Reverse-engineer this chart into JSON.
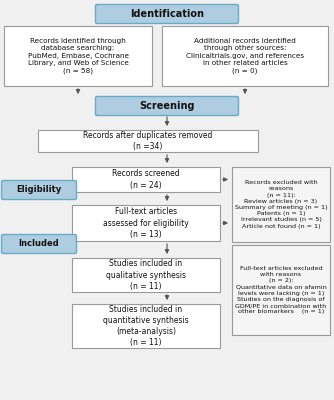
{
  "bg_color": "#f0f0f0",
  "header_bg": "#aecde0",
  "header_border": "#6aaac8",
  "box_bg": "#ffffff",
  "box_border": "#999999",
  "right_box_bg": "#f5f5f5",
  "right_box_border": "#999999",
  "arrow_color": "#555555",
  "text_color": "#111111",
  "identification_label": "Identification",
  "screening_label": "Screening",
  "eligibility_label": "Eligibility",
  "included_label": "Included",
  "box1_left_text": "Records identified through\ndatabase searching:\nPubMed, Embase, Cochrane\nLibrary, and Web of Science\n(n = 58)",
  "box1_right_text": "Additional records identified\nthrough other sources:\nClinicaltrials.gov, and references\nin other related articles\n(n = 0)",
  "box2_text": "Records after duplicates removed\n(n =34)",
  "box3_text": "Records screened\n(n = 24)",
  "box4_text": "Full-text articles\nassessed for eligibility\n(n = 13)",
  "box5_text": "Studies included in\nqualitative synthesis\n(n = 11)",
  "box6_text": "Studies included in\nquantitative synthesis\n(meta-analysis)\n(n = 11)",
  "right1_text": "Records excluded with\nreasons\n(n = 11):\nReview articles (n = 3)\nSummary of meeting (n = 1)\nPatents (n = 1)\nIrrelevant studies (n = 5)\nArticle not found (n = 1)",
  "right2_text": "Full-text articles excluded\nwith reasons\n(n = 2):\nQuantitative data on afamin\nlevels were lacking (n = 1)\nStudies on the diagnosis of\nGDM/PE in combination with\nother biomarkers    (n = 1)"
}
